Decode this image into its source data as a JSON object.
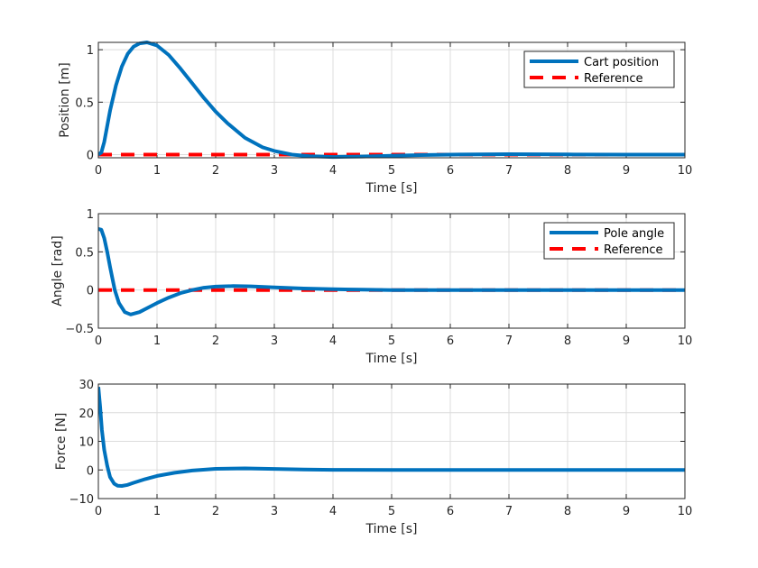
{
  "chart_data": [
    {
      "type": "line",
      "title": "",
      "xlabel": "Time [s]",
      "ylabel": "Position [m]",
      "xlim": [
        0,
        10
      ],
      "ylim": [
        -0.03,
        1.07
      ],
      "xticks": [
        0,
        1,
        2,
        3,
        4,
        5,
        6,
        7,
        8,
        9,
        10
      ],
      "yticks": [
        0,
        0.5,
        1
      ],
      "ytick_labels": [
        "0",
        "0.5",
        "1"
      ],
      "grid": true,
      "legend_position": "top-right",
      "series": [
        {
          "name": "Cart position",
          "color": "#0072BD",
          "style": "solid",
          "x": [
            0,
            0.05,
            0.1,
            0.2,
            0.3,
            0.4,
            0.5,
            0.6,
            0.7,
            0.83,
            1.0,
            1.2,
            1.4,
            1.6,
            1.8,
            2.0,
            2.2,
            2.5,
            2.8,
            3.0,
            3.3,
            3.6,
            4.0,
            4.5,
            5.0,
            5.5,
            6.0,
            7.0,
            8.0,
            9.0,
            10.0
          ],
          "y": [
            0,
            0.02,
            0.12,
            0.42,
            0.66,
            0.84,
            0.96,
            1.03,
            1.06,
            1.07,
            1.04,
            0.95,
            0.82,
            0.68,
            0.54,
            0.41,
            0.3,
            0.16,
            0.07,
            0.035,
            0.0,
            -0.015,
            -0.022,
            -0.018,
            -0.01,
            -0.004,
            0.0,
            0.004,
            0.002,
            0.0,
            0.0
          ]
        },
        {
          "name": "Reference",
          "color": "#FF0000",
          "style": "dashed",
          "x": [
            0,
            10
          ],
          "y": [
            0,
            0
          ]
        }
      ]
    },
    {
      "type": "line",
      "title": "",
      "xlabel": "Time [s]",
      "ylabel": "Angle [rad]",
      "xlim": [
        0,
        10
      ],
      "ylim": [
        -0.5,
        1
      ],
      "xticks": [
        0,
        1,
        2,
        3,
        4,
        5,
        6,
        7,
        8,
        9,
        10
      ],
      "yticks": [
        -0.5,
        0,
        0.5,
        1
      ],
      "ytick_labels": [
        "−0.5",
        "0",
        "0.5",
        "1"
      ],
      "grid": true,
      "legend_position": "top-right",
      "series": [
        {
          "name": "Pole angle",
          "color": "#0072BD",
          "style": "solid",
          "x": [
            0,
            0.05,
            0.1,
            0.15,
            0.2,
            0.28,
            0.35,
            0.45,
            0.55,
            0.7,
            0.85,
            1.0,
            1.2,
            1.4,
            1.6,
            1.8,
            2.0,
            2.3,
            2.6,
            3.0,
            3.5,
            4.0,
            4.5,
            5.0,
            6.0,
            7.0,
            8.0,
            9.0,
            10.0
          ],
          "y": [
            0.8,
            0.79,
            0.68,
            0.5,
            0.3,
            0.0,
            -0.17,
            -0.29,
            -0.32,
            -0.29,
            -0.23,
            -0.17,
            -0.1,
            -0.04,
            0.0,
            0.03,
            0.045,
            0.052,
            0.048,
            0.035,
            0.02,
            0.01,
            0.004,
            0.0,
            0.0,
            0.0,
            0.0,
            0.0,
            0.0
          ]
        },
        {
          "name": "Reference",
          "color": "#FF0000",
          "style": "dashed",
          "x": [
            0,
            10
          ],
          "y": [
            0,
            0
          ]
        }
      ]
    },
    {
      "type": "line",
      "title": "",
      "xlabel": "Time [s]",
      "ylabel": "Force [N]",
      "xlim": [
        0,
        10
      ],
      "ylim": [
        -10,
        30
      ],
      "xticks": [
        0,
        1,
        2,
        3,
        4,
        5,
        6,
        7,
        8,
        9,
        10
      ],
      "yticks": [
        -10,
        0,
        10,
        20,
        30
      ],
      "ytick_labels": [
        "−10",
        "0",
        "10",
        "20",
        "30"
      ],
      "grid": true,
      "series": [
        {
          "name": "Force",
          "color": "#0072BD",
          "style": "solid",
          "x": [
            0,
            0.03,
            0.06,
            0.1,
            0.15,
            0.2,
            0.27,
            0.33,
            0.4,
            0.5,
            0.6,
            0.8,
            1.0,
            1.3,
            1.6,
            2.0,
            2.5,
            3.0,
            3.5,
            4.0,
            5.0,
            6.0,
            7.0,
            8.0,
            9.0,
            10.0
          ],
          "y": [
            29,
            22,
            14,
            7,
            1.5,
            -2.5,
            -4.8,
            -5.5,
            -5.6,
            -5.2,
            -4.5,
            -3.2,
            -2.1,
            -1.0,
            -0.2,
            0.4,
            0.55,
            0.35,
            0.15,
            0.05,
            0,
            0,
            0,
            0,
            0,
            0
          ]
        }
      ]
    }
  ]
}
